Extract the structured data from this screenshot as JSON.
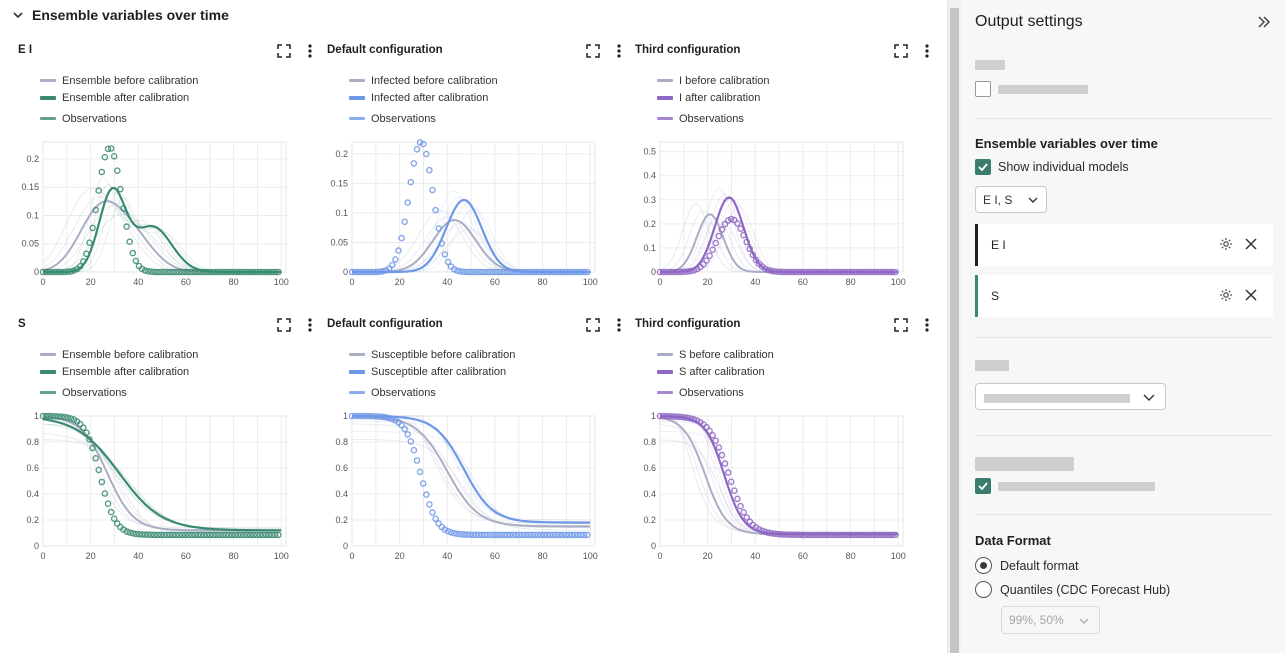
{
  "main": {
    "section_title": "Ensemble variables over time",
    "panels": [
      {
        "title": "E I",
        "legend": [
          "Ensemble before calibration",
          "Ensemble after calibration",
          "Observations"
        ],
        "color": "#3a8a72",
        "ymax": 0.23,
        "yticks": [
          "0",
          "0.05",
          "0.1",
          "0.15",
          "0.2"
        ],
        "xticks": [
          "0",
          "20",
          "40",
          "60",
          "80",
          "100"
        ],
        "kind": "bell"
      },
      {
        "title": "Default configuration",
        "legend": [
          "Infected before calibration",
          "Infected after calibration",
          "Observations"
        ],
        "color": "#6e98e6",
        "ymax": 0.22,
        "yticks": [
          "0",
          "0.05",
          "0.1",
          "0.15",
          "0.2"
        ],
        "xticks": [
          "0",
          "20",
          "40",
          "60",
          "80",
          "100"
        ],
        "kind": "bell"
      },
      {
        "title": "Third configuration",
        "legend": [
          "I before calibration",
          "I after calibration",
          "Observations"
        ],
        "color": "#8e67c2",
        "ymax": 0.54,
        "yticks": [
          "0",
          "0.1",
          "0.2",
          "0.3",
          "0.4",
          "0.5"
        ],
        "xticks": [
          "0",
          "20",
          "40",
          "60",
          "80",
          "100"
        ],
        "kind": "bell"
      },
      {
        "title": "S",
        "legend": [
          "Ensemble before calibration",
          "Ensemble after calibration",
          "Observations"
        ],
        "color": "#3a8a72",
        "ymax": 1.0,
        "yticks": [
          "0",
          "0.2",
          "0.4",
          "0.6",
          "0.8",
          "1"
        ],
        "xticks": [
          "0",
          "20",
          "40",
          "60",
          "80",
          "100"
        ],
        "kind": "sigmoid"
      },
      {
        "title": "Default configuration",
        "legend": [
          "Susceptible before calibration",
          "Susceptible after calibration",
          "Observations"
        ],
        "color": "#6e98e6",
        "ymax": 1.0,
        "yticks": [
          "0",
          "0.2",
          "0.4",
          "0.6",
          "0.8",
          "1"
        ],
        "xticks": [
          "0",
          "20",
          "40",
          "60",
          "80",
          "100"
        ],
        "kind": "sigmoid"
      },
      {
        "title": "Third configuration",
        "legend": [
          "S before calibration",
          "S after calibration",
          "Observations"
        ],
        "color": "#8e67c2",
        "ymax": 1.0,
        "yticks": [
          "0",
          "0.2",
          "0.4",
          "0.6",
          "0.8",
          "1"
        ],
        "xticks": [
          "0",
          "20",
          "40",
          "60",
          "80",
          "100"
        ],
        "kind": "sigmoid"
      }
    ]
  },
  "sidebar": {
    "title": "Output settings",
    "ensemble_heading": "Ensemble variables over time",
    "show_individual_models": "Show individual models",
    "variable_select": "E I, S",
    "variables": [
      {
        "name": "E I",
        "bar_color": "#1f1f1f"
      },
      {
        "name": "S",
        "bar_color": "#3a8a72"
      }
    ],
    "data_format_heading": "Data Format",
    "format_options": [
      "Default format",
      "Quantiles (CDC Forecast Hub)"
    ],
    "quantiles_select": "99%, 50%"
  },
  "colors": {
    "before": "#a9aec4",
    "accent": "#3a7d6e"
  }
}
